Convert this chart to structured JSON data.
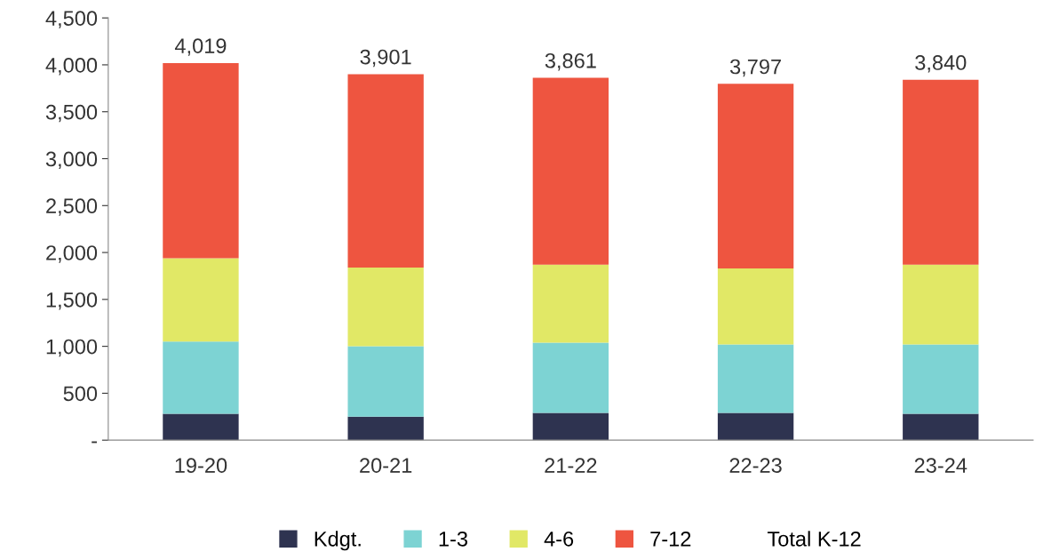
{
  "chart_data": {
    "type": "bar",
    "stacked": true,
    "categories": [
      "19-20",
      "20-21",
      "21-22",
      "22-23",
      "23-24"
    ],
    "series": [
      {
        "name": "Kdgt.",
        "color": "#2e3350",
        "values": [
          280,
          250,
          290,
          290,
          280
        ]
      },
      {
        "name": "1-3",
        "color": "#7dd3d3",
        "values": [
          770,
          750,
          750,
          730,
          740
        ]
      },
      {
        "name": "4-6",
        "color": "#e1e866",
        "values": [
          890,
          840,
          830,
          810,
          850
        ]
      },
      {
        "name": "7-12",
        "color": "#ee5540",
        "values": [
          2079,
          2061,
          1991,
          1967,
          1970
        ]
      },
      {
        "name": "Total K-12",
        "type": "line",
        "line_style": "none",
        "marker": "none",
        "values": [
          null,
          null,
          null,
          null,
          null
        ]
      }
    ],
    "totals": [
      "4,019",
      "3,901",
      "3,861",
      "3,797",
      "3,840"
    ],
    "ylim": [
      0,
      4500
    ],
    "yticks": [
      {
        "value": 0,
        "label": "-"
      },
      {
        "value": 500,
        "label": "500"
      },
      {
        "value": 1000,
        "label": "1,000"
      },
      {
        "value": 1500,
        "label": "1,500"
      },
      {
        "value": 2000,
        "label": "2,000"
      },
      {
        "value": 2500,
        "label": "2,500"
      },
      {
        "value": 3000,
        "label": "3,000"
      },
      {
        "value": 3500,
        "label": "3,500"
      },
      {
        "value": 4000,
        "label": "4,000"
      },
      {
        "value": 4500,
        "label": "4,500"
      }
    ],
    "grid": false,
    "legend": "bottom"
  }
}
